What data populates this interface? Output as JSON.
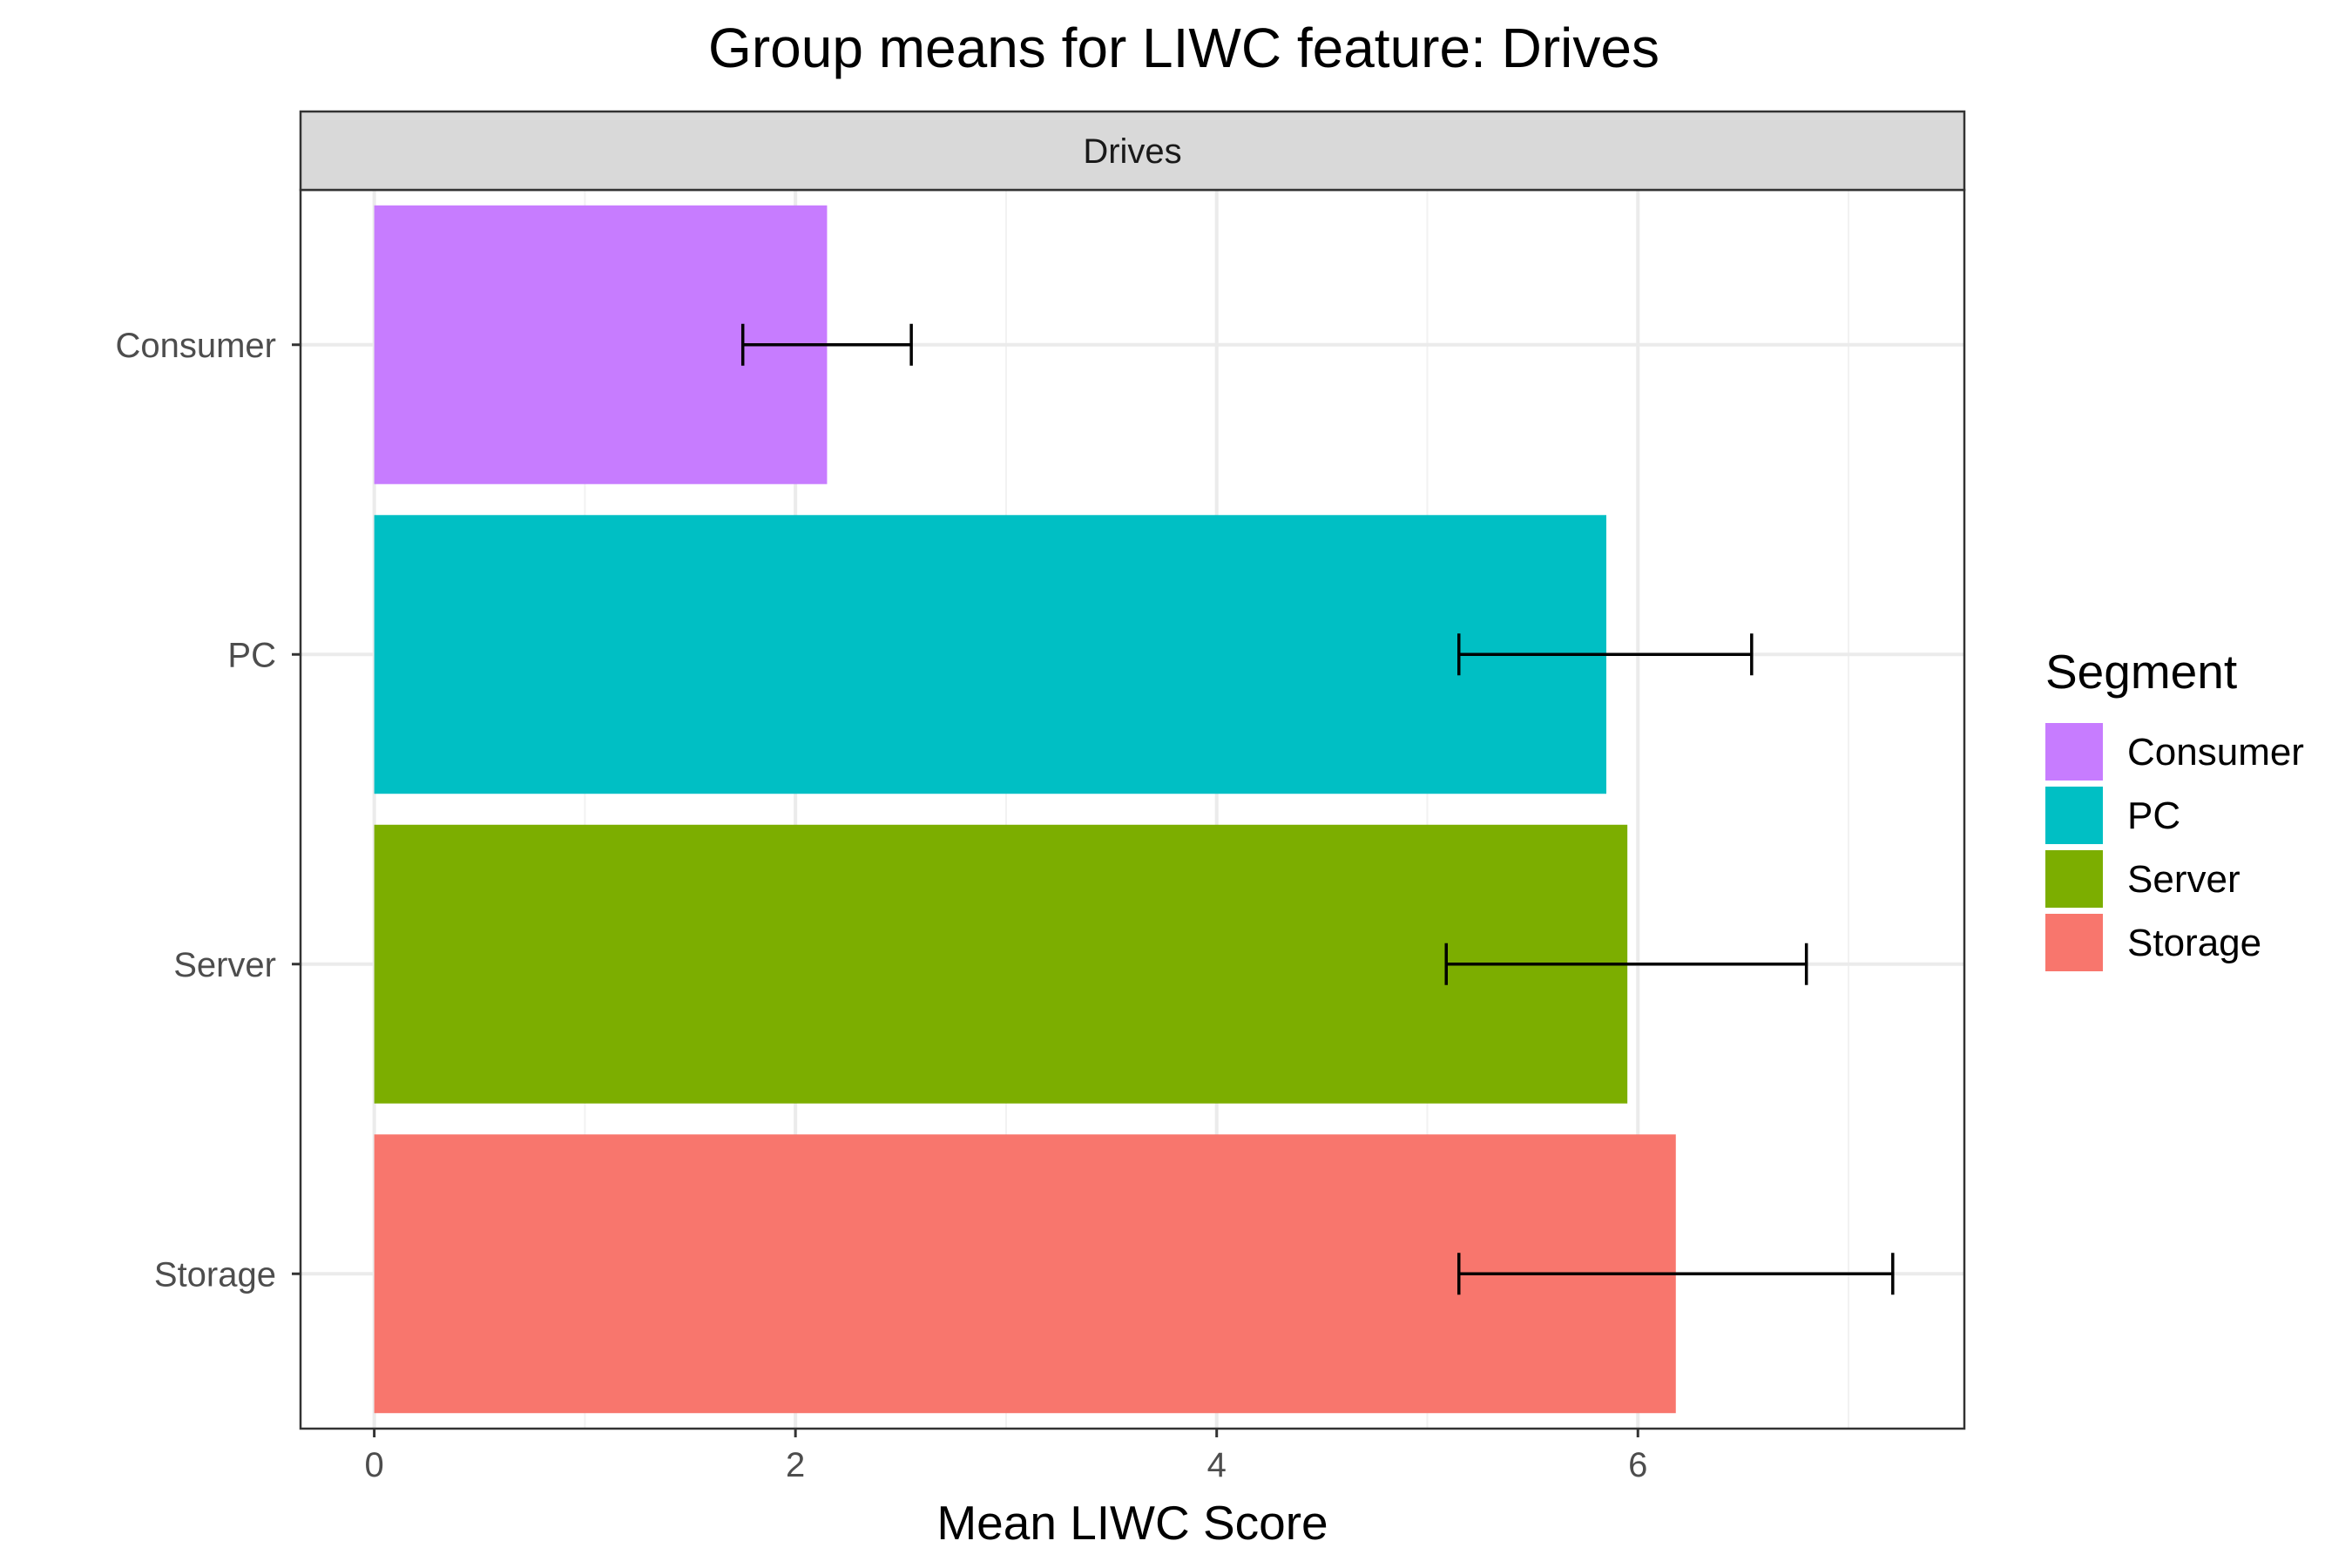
{
  "chart_data": {
    "type": "bar",
    "orientation": "horizontal",
    "title": "Group means for LIWC feature: Drives",
    "facet_label": "Drives",
    "xlabel": "Mean LIWC Score",
    "ylabel": "",
    "xlim": [
      -0.35,
      7.55
    ],
    "x_ticks": [
      0,
      2,
      4,
      6
    ],
    "x_tick_labels": [
      "0",
      "2",
      "4",
      "6"
    ],
    "categories": [
      "Consumer",
      "PC",
      "Server",
      "Storage"
    ],
    "values": [
      2.15,
      5.85,
      5.95,
      6.18
    ],
    "error_low": [
      1.75,
      5.15,
      5.09,
      5.15
    ],
    "error_high": [
      2.55,
      6.54,
      6.8,
      7.21
    ],
    "colors": [
      "#C77CFF",
      "#00BFC4",
      "#7CAE00",
      "#F8766D"
    ],
    "grid": true,
    "legend": {
      "title": "Segment",
      "position": "right",
      "entries": [
        "Consumer",
        "PC",
        "Server",
        "Storage"
      ]
    }
  }
}
